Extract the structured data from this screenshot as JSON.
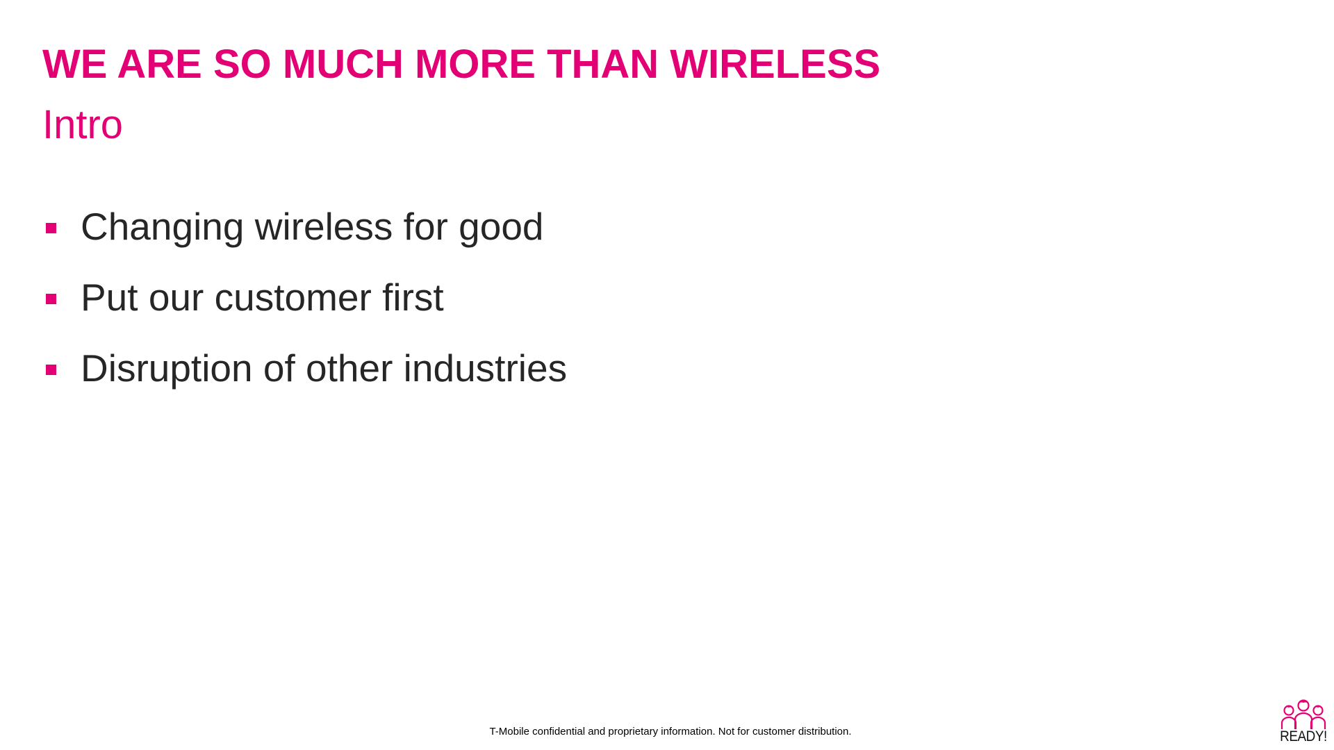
{
  "slide": {
    "title": "WE ARE SO MUCH MORE THAN WIRELESS",
    "subtitle": "Intro",
    "bullets": [
      "Changing wireless for good",
      "Put our customer first",
      "Disruption of other industries"
    ],
    "footer": "T-Mobile confidential and proprietary information. Not for customer distribution.",
    "logo": {
      "text": "READY!",
      "icon": "three-people-icon"
    },
    "colors": {
      "accent": "#e20074",
      "text": "#262626",
      "background": "#ffffff"
    }
  }
}
